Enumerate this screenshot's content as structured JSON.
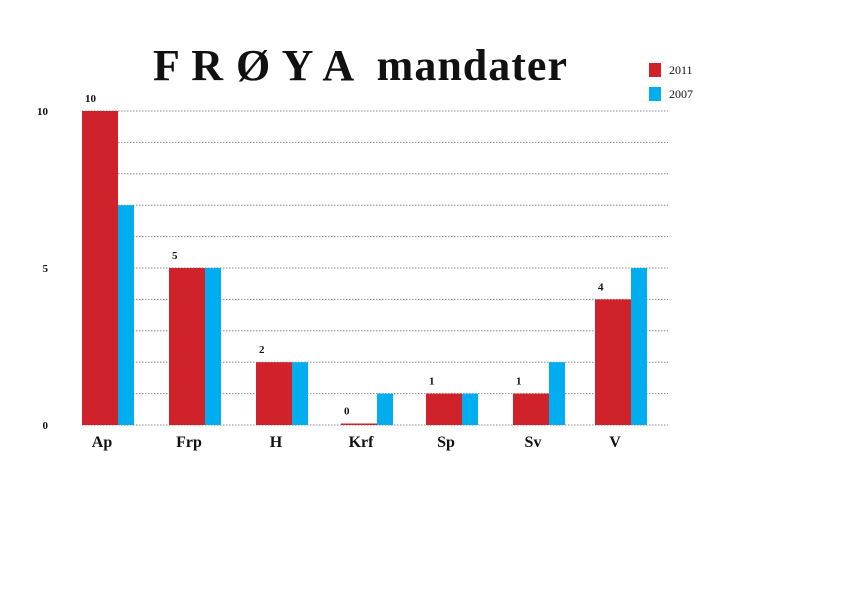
{
  "chart_data": {
    "type": "bar",
    "title": "F R Ø Y A  mandater",
    "categories": [
      "Ap",
      "Frp",
      "H",
      "Krf",
      "Sp",
      "Sv",
      "V"
    ],
    "series": [
      {
        "name": "2011",
        "color": "#d0222b",
        "values": [
          10,
          5,
          2,
          0,
          1,
          1,
          4
        ]
      },
      {
        "name": "2007",
        "color": "#00aeef",
        "values": [
          7,
          5,
          2,
          1,
          1,
          2,
          5
        ]
      }
    ],
    "data_labels": [
      "10",
      "5",
      "2",
      "0",
      "1",
      "1",
      "4"
    ],
    "ylim": [
      0,
      10
    ],
    "yticks": [
      0,
      5,
      10
    ],
    "grid": true,
    "legend": "top-right",
    "xlabel": "",
    "ylabel": ""
  }
}
